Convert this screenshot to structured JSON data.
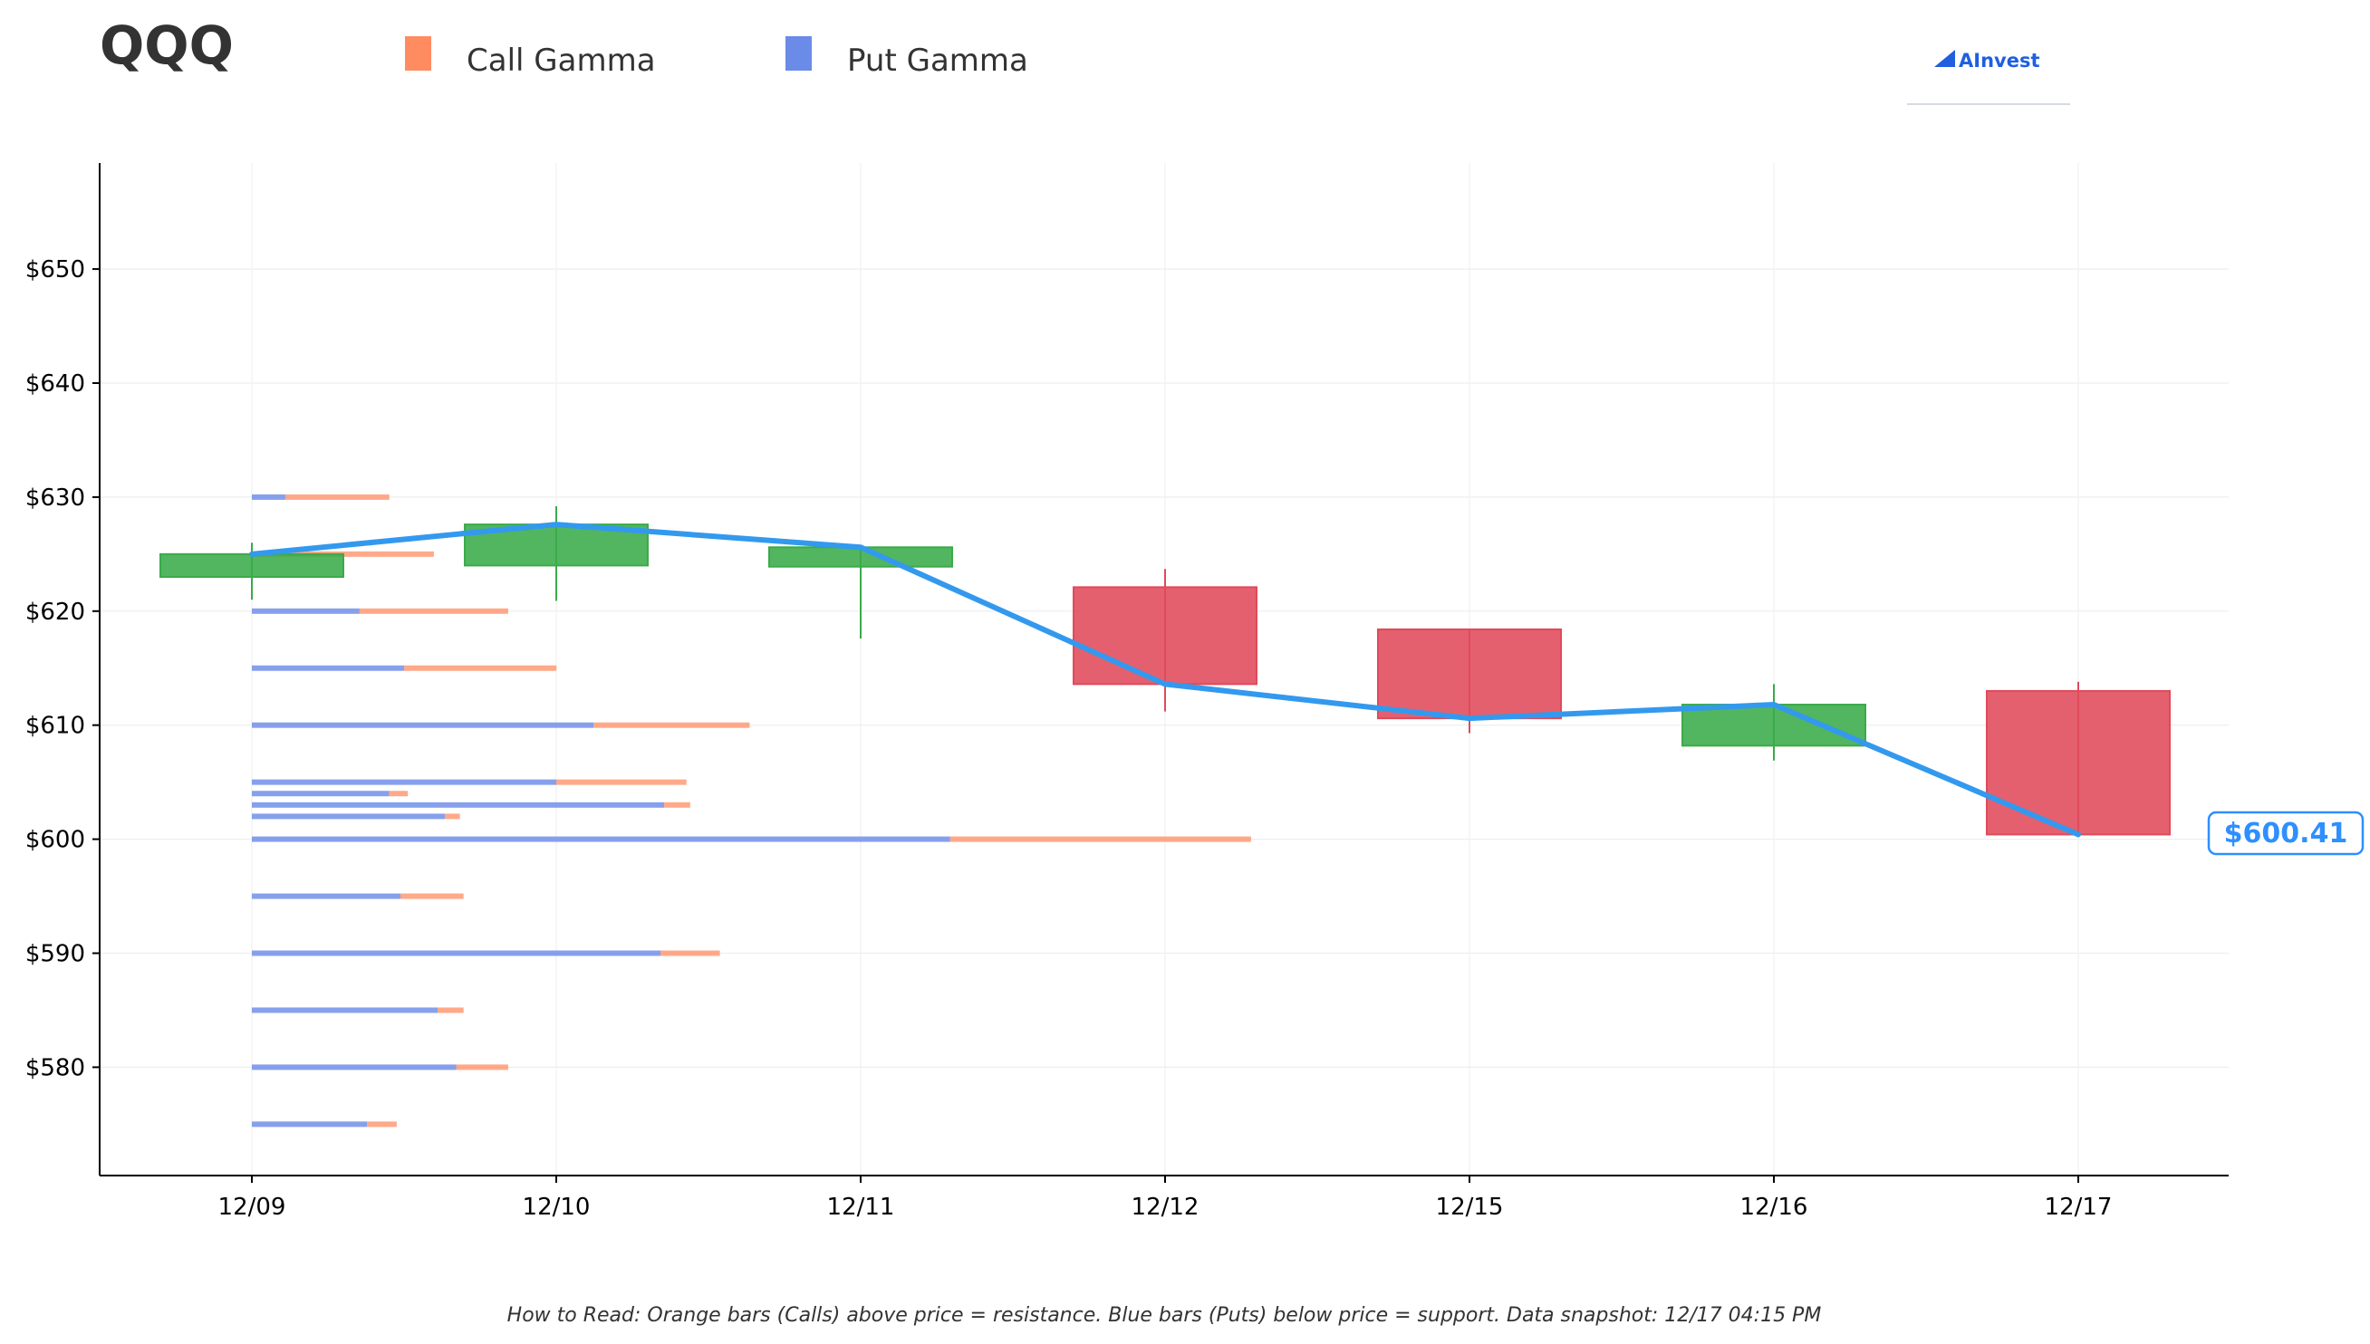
{
  "ticker": "QQQ",
  "brand": {
    "name": "AInvest"
  },
  "legend": [
    {
      "label": "Call Gamma",
      "color": "#ff8c61"
    },
    {
      "label": "Put Gamma",
      "color": "#6b8be8"
    }
  ],
  "footnote": "How to Read: Orange bars (Calls) above price = resistance. Blue bars (Puts) below price = support. Data snapshot: 12/17 04:15 PM",
  "current_price_label": "$600.41",
  "chart_data": {
    "type": "candlestick",
    "categories": [
      "12/09",
      "12/10",
      "12/11",
      "12/12",
      "12/15",
      "12/16",
      "12/17"
    ],
    "ylim": [
      570.5,
      659.3
    ],
    "y_ticks": [
      580,
      590,
      600,
      610,
      620,
      630,
      640,
      650
    ],
    "y_tick_labels": [
      "$580",
      "$590",
      "$600",
      "$610",
      "$620",
      "$630",
      "$640",
      "$650"
    ],
    "grid": true,
    "legend_position": "top-left",
    "candles": [
      {
        "date": "12/09",
        "open": 623.0,
        "high": 626.0,
        "low": 621.0,
        "close": 625.0
      },
      {
        "date": "12/10",
        "open": 624.0,
        "high": 629.2,
        "low": 620.9,
        "close": 627.6
      },
      {
        "date": "12/11",
        "open": 623.9,
        "high": 625.6,
        "low": 617.6,
        "close": 625.6
      },
      {
        "date": "12/12",
        "open": 622.1,
        "high": 623.7,
        "low": 611.2,
        "close": 613.6
      },
      {
        "date": "12/15",
        "open": 618.4,
        "high": 618.4,
        "low": 609.3,
        "close": 610.6
      },
      {
        "date": "12/16",
        "open": 608.2,
        "high": 613.6,
        "low": 606.9,
        "close": 611.8
      },
      {
        "date": "12/17",
        "open": 613.0,
        "high": 613.8,
        "low": 600.4,
        "close": 600.41
      }
    ],
    "close_line": {
      "color": "#3399ee",
      "values": [
        625.0,
        627.6,
        625.6,
        613.6,
        610.6,
        611.8,
        600.41
      ]
    },
    "gamma_bars": [
      {
        "strike": 630,
        "put": 0.45,
        "call": 1.4
      },
      {
        "strike": 625,
        "put": 0.0,
        "call": 2.45
      },
      {
        "strike": 620,
        "put": 1.45,
        "call": 2.0
      },
      {
        "strike": 615,
        "put": 2.05,
        "call": 2.05
      },
      {
        "strike": 610,
        "put": 4.6,
        "call": 2.1
      },
      {
        "strike": 605,
        "put": 4.1,
        "call": 1.75
      },
      {
        "strike": 604,
        "put": 1.85,
        "call": 0.25
      },
      {
        "strike": 603,
        "put": 5.55,
        "call": 0.35
      },
      {
        "strike": 602,
        "put": 2.6,
        "call": 0.2
      },
      {
        "strike": 600,
        "put": 9.4,
        "call": 4.05
      },
      {
        "strike": 595,
        "put": 2.0,
        "call": 0.85
      },
      {
        "strike": 590,
        "put": 5.5,
        "call": 0.8
      },
      {
        "strike": 585,
        "put": 2.5,
        "call": 0.35
      },
      {
        "strike": 580,
        "put": 2.75,
        "call": 0.7
      },
      {
        "strike": 575,
        "put": 1.55,
        "call": 0.4
      }
    ],
    "colors": {
      "up": "#3aab4a",
      "down": "#e04a5a",
      "call": "#ff8c61",
      "put": "#6b8be8"
    }
  }
}
